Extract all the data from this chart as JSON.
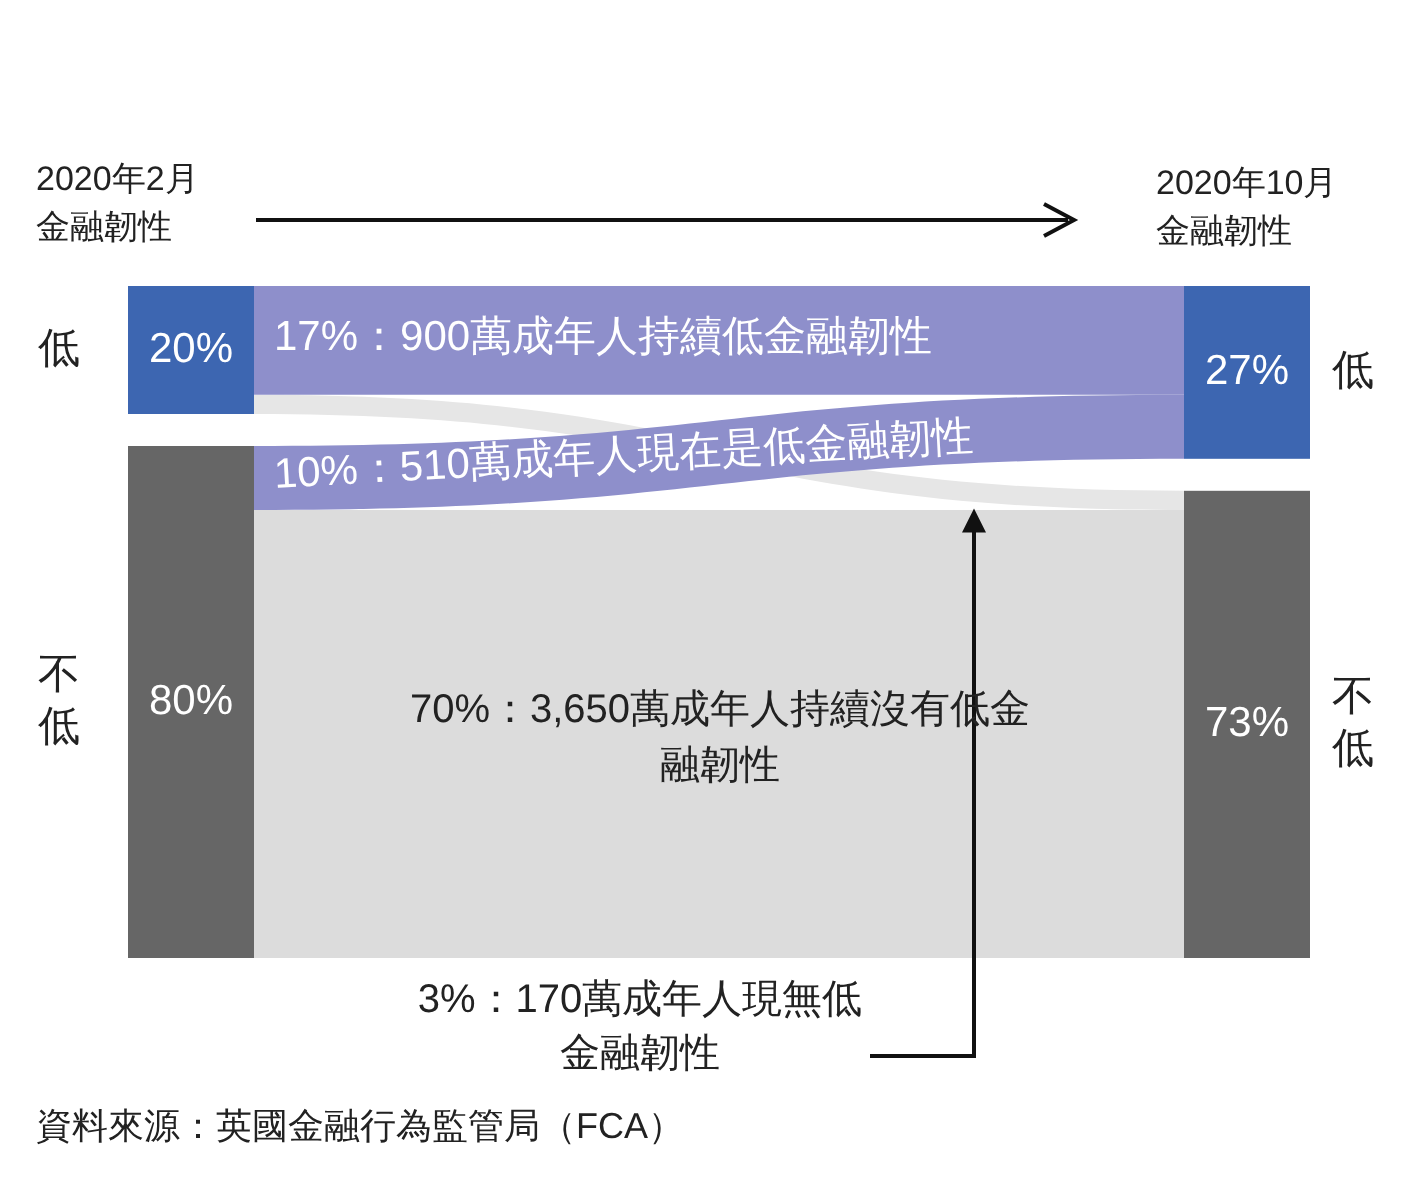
{
  "chart_data": {
    "type": "other",
    "categories": [
      "低",
      "不低"
    ],
    "series": [
      {
        "name": "2020年2月金融韌性",
        "values": [
          20,
          80
        ],
        "value_labels": [
          "20%",
          "80%"
        ],
        "colors": [
          "#3d66b1",
          "#666666"
        ]
      },
      {
        "name": "2020年10月金融韌性",
        "values": [
          27,
          73
        ],
        "value_labels": [
          "27%",
          "73%"
        ],
        "colors": [
          "#3d66b1",
          "#666666"
        ]
      },
      {
        "values": [
          17,
          3
        ],
        "value_labels": [
          "17%：900萬成年人持續低金融韌性",
          "3%：170萬成年人現無低金融韌性"
        ],
        "colors": [
          "#8e8fcb",
          "#e6e6e6"
        ]
      },
      {
        "values": [
          10,
          70
        ],
        "value_labels": [
          "10%：510萬成年人現在是低金融韌性",
          "70%：3,650萬成年人持續沒有低金融韌性"
        ],
        "colors": [
          "#8e8fcb",
          "#dcdcdc"
        ]
      }
    ],
    "annotations": [
      "資料來源：英國金融行為監管局（FCA）"
    ]
  }
}
